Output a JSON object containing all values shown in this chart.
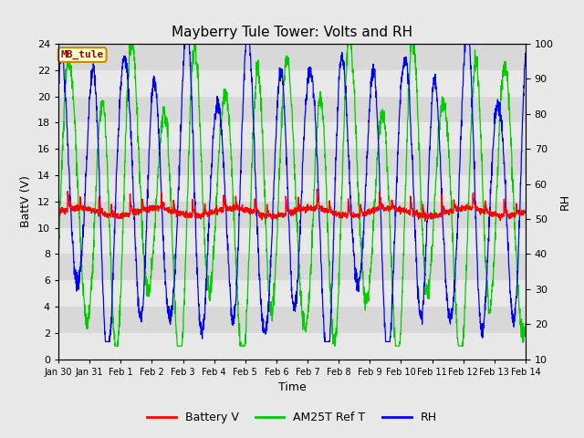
{
  "title": "Mayberry Tule Tower: Volts and RH",
  "xlabel": "Time",
  "ylabel_left": "BattV (V)",
  "ylabel_right": "RH",
  "ylim_left": [
    0,
    24
  ],
  "ylim_right": [
    10,
    100
  ],
  "yticks_left": [
    0,
    2,
    4,
    6,
    8,
    10,
    12,
    14,
    16,
    18,
    20,
    22,
    24
  ],
  "yticks_right": [
    10,
    20,
    30,
    40,
    50,
    60,
    70,
    80,
    90,
    100
  ],
  "x_labels": [
    "Jan 30",
    "Jan 31",
    "Feb 1",
    "Feb 2",
    "Feb 3",
    "Feb 4",
    "Feb 5",
    "Feb 6",
    "Feb 7",
    "Feb 8",
    "Feb 9",
    "Feb 10",
    "Feb 11",
    "Feb 12",
    "Feb 13",
    "Feb 14"
  ],
  "legend_labels": [
    "Battery V",
    "AM25T Ref T",
    "RH"
  ],
  "legend_colors": [
    "red",
    "#00cc00",
    "blue"
  ],
  "line_colors": [
    "red",
    "#00cc00",
    "blue"
  ],
  "bg_color": "#e8e8e8",
  "plot_bg_color": "#e0e0e0",
  "band_color_light": "#e8e8e8",
  "band_color_dark": "#d8d8d8",
  "annotation_text": "MB_tule",
  "annotation_bg": "#ffffcc",
  "annotation_border": "#cc8800",
  "title_fontsize": 11,
  "axis_fontsize": 9,
  "tick_fontsize": 8
}
